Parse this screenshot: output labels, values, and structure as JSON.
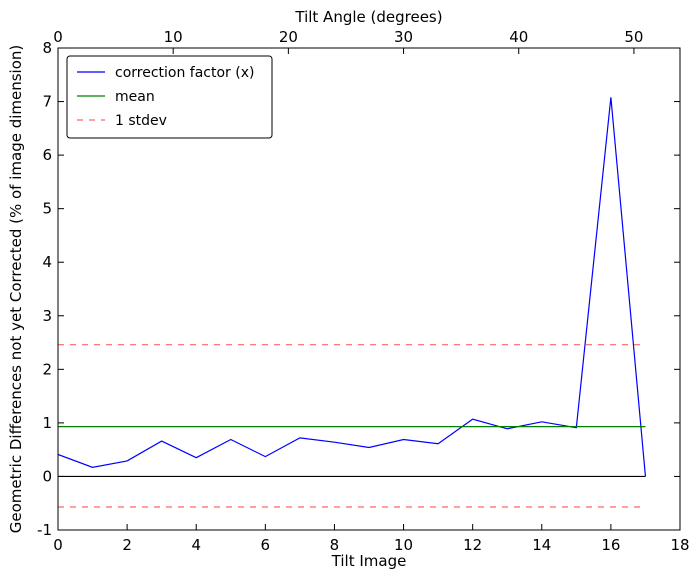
{
  "chart_data": {
    "type": "line",
    "title": "",
    "xlabel": "Tilt Image",
    "ylabel": "Geometric Differences not yet Corrected (% of image dimension)",
    "x2label": "Tilt Angle (degrees)",
    "xlim": [
      0,
      18
    ],
    "ylim": [
      -1,
      8
    ],
    "x2lim": [
      0,
      54
    ],
    "xticks": [
      0,
      2,
      4,
      6,
      8,
      10,
      12,
      14,
      16,
      18
    ],
    "yticks": [
      -1,
      0,
      1,
      2,
      3,
      4,
      5,
      6,
      7,
      8
    ],
    "x2ticks": [
      0,
      10,
      20,
      30,
      40,
      50
    ],
    "grid": false,
    "legend_position": "top-left",
    "series": [
      {
        "name": "correction factor (x)",
        "style": "solid",
        "color": "#0000ff",
        "x": [
          0,
          1,
          2,
          3,
          4,
          5,
          6,
          7,
          8,
          9,
          10,
          11,
          12,
          13,
          14,
          15,
          16,
          17
        ],
        "values": [
          0.41,
          0.17,
          0.29,
          0.66,
          0.35,
          0.69,
          0.37,
          0.72,
          0.64,
          0.54,
          0.69,
          0.61,
          1.07,
          0.89,
          1.02,
          0.91,
          7.08,
          0.0
        ]
      },
      {
        "name": "mean",
        "style": "solid",
        "color": "#008000",
        "x": [
          0,
          17
        ],
        "values": [
          0.93,
          0.93
        ]
      },
      {
        "name": "1 stdev",
        "style": "dashed",
        "color": "#ff0000",
        "x": [
          0,
          17
        ],
        "values": [
          2.46,
          2.46
        ]
      },
      {
        "name": "",
        "style": "dashed",
        "color": "#ff0000",
        "x": [
          0,
          17
        ],
        "values": [
          -0.57,
          -0.57
        ]
      },
      {
        "name": "",
        "style": "solid",
        "color": "#000000",
        "x": [
          0,
          17
        ],
        "values": [
          0.0,
          0.0
        ]
      }
    ]
  }
}
